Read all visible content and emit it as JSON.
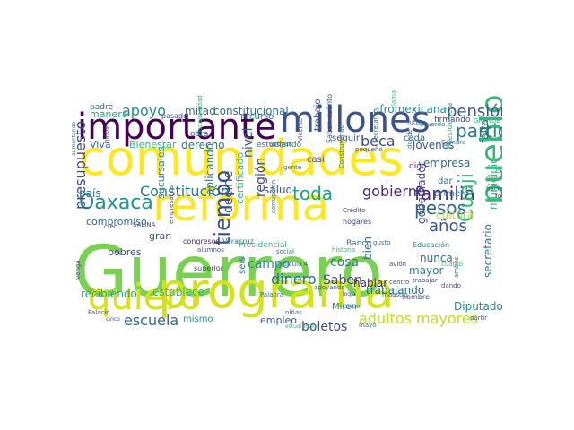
{
  "words": [
    {
      "text": "Guerrero",
      "color": "#7ad151",
      "vertical": false
    },
    {
      "text": "comunidades",
      "color": "#fde725",
      "vertical": false
    },
    {
      "text": "programa",
      "color": "#d2e21b",
      "vertical": false
    },
    {
      "text": "reforma",
      "color": "#fde725",
      "vertical": false
    },
    {
      "text": "importante",
      "color": "#440154",
      "vertical": false
    },
    {
      "text": "millones",
      "color": "#3b528b",
      "vertical": false
    },
    {
      "text": "quiero",
      "color": "#d8e219",
      "vertical": false
    },
    {
      "text": "pueblo",
      "color": "#35b779",
      "vertical": true
    },
    {
      "text": "Oaxaca",
      "color": "#21918c",
      "vertical": false
    },
    {
      "text": "Constitución",
      "color": "#2a788e",
      "vertical": false
    },
    {
      "text": "toda",
      "color": "#1fa187",
      "vertical": false
    },
    {
      "text": "familia",
      "color": "#472d7b",
      "vertical": false
    },
    {
      "text": "pesos",
      "color": "#31688e",
      "vertical": false
    },
    {
      "text": "partido",
      "color": "#2a788e",
      "vertical": false
    },
    {
      "text": "pensión",
      "color": "#3b528b",
      "vertical": false
    },
    {
      "text": "apoyo",
      "color": "#228c8d",
      "vertical": false
    },
    {
      "text": "beca",
      "color": "#3e4989",
      "vertical": false
    },
    {
      "text": "gobierno",
      "color": "#482878",
      "vertical": false
    },
    {
      "text": "años",
      "color": "#3b528b",
      "vertical": false
    },
    {
      "text": "Cuaji",
      "color": "#35b779",
      "vertical": true
    },
    {
      "text": "presupuesto",
      "color": "#3e4989",
      "vertical": true
    },
    {
      "text": "tiempo",
      "color": "#3b528b",
      "vertical": true
    },
    {
      "text": "adultos mayores",
      "color": "#bddf26",
      "vertical": false
    },
    {
      "text": "escuela",
      "color": "#31688e",
      "vertical": false
    },
    {
      "text": "boletos",
      "color": "#3e4989",
      "vertical": false
    },
    {
      "text": "dinero",
      "color": "#2c728e",
      "vertical": false
    },
    {
      "text": "Saben",
      "color": "#3e4989",
      "vertical": false
    },
    {
      "text": "hablar",
      "color": "#472d7b",
      "vertical": false
    },
    {
      "text": "cosa",
      "color": "#2a788e",
      "vertical": false
    },
    {
      "text": "salud",
      "color": "#3b528b",
      "vertical": false
    },
    {
      "text": "región",
      "color": "#3e4989",
      "vertical": true
    },
    {
      "text": "nivel",
      "color": "#355f8d",
      "vertical": true
    },
    {
      "text": "derecho",
      "color": "#2c728e",
      "vertical": false
    },
    {
      "text": "campo",
      "color": "#21918c",
      "vertical": false
    },
    {
      "text": "decirle",
      "color": "#3b528b",
      "vertical": true
    },
    {
      "text": "aplicando",
      "color": "#2a788e",
      "vertical": true
    },
    {
      "text": "recibiendo",
      "color": "#22a884",
      "vertical": false
    },
    {
      "text": "establece",
      "color": "#35b779",
      "vertical": false
    },
    {
      "text": "constitucional",
      "color": "#2c728e",
      "vertical": false
    },
    {
      "text": "afromexicana",
      "color": "#21918c",
      "vertical": false
    },
    {
      "text": "mitad",
      "color": "#2c728e",
      "vertical": false
    },
    {
      "text": "jóvenes",
      "color": "#3b528b",
      "vertical": false
    },
    {
      "text": "empresa",
      "color": "#31688e",
      "vertical": false
    },
    {
      "text": "falta",
      "color": "#2c728e",
      "vertical": true
    },
    {
      "text": "cultura",
      "color": "#b5de2b",
      "vertical": false
    },
    {
      "text": "nunca",
      "color": "#2c728e",
      "vertical": false
    },
    {
      "text": "municipio",
      "color": "#35b779",
      "vertical": true
    },
    {
      "text": "Diputados",
      "color": "#21918c",
      "vertical": false
    },
    {
      "text": "mayor",
      "color": "#26828e",
      "vertical": false
    },
    {
      "text": "bien",
      "color": "#2c728e",
      "vertical": true
    },
    {
      "text": "gobernador",
      "color": "#3e4989",
      "vertical": true
    },
    {
      "text": "secretario",
      "color": "#2c728e",
      "vertical": true
    },
    {
      "text": "trabajando",
      "color": "#2c728e",
      "vertical": false
    },
    {
      "text": "país",
      "color": "#2c728e",
      "vertical": false
    },
    {
      "text": "compromiso",
      "color": "#31688e",
      "vertical": false
    },
    {
      "text": "sucursales",
      "color": "#2a788e",
      "vertical": true
    },
    {
      "text": "gran",
      "color": "#3b528b",
      "vertical": false
    },
    {
      "text": "pobres",
      "color": "#414487",
      "vertical": false
    },
    {
      "text": "manera",
      "color": "#22a884",
      "vertical": false
    },
    {
      "text": "Viva",
      "color": "#31688e",
      "vertical": false
    },
    {
      "text": "Bienestar",
      "color": "#35b779",
      "vertical": false
    },
    {
      "text": "padre",
      "color": "#31688e",
      "vertical": false
    },
    {
      "text": "pasado",
      "color": "#3e4989",
      "vertical": false
    },
    {
      "text": "recurso",
      "color": "#2c728e",
      "vertical": false
    },
    {
      "text": "firmando",
      "color": "#3e4989",
      "vertical": false
    },
    {
      "text": "estudiando",
      "color": "#2c728e",
      "vertical": false
    },
    {
      "text": "seguir",
      "color": "#3b528b",
      "vertical": false
    },
    {
      "text": "cada",
      "color": "#31688e",
      "vertical": false
    },
    {
      "text": "primero",
      "color": "#2a788e",
      "vertical": false
    },
    {
      "text": "dar",
      "color": "#2c728e",
      "vertical": false
    },
    {
      "text": "certificado",
      "color": "#35b779",
      "vertical": true
    },
    {
      "text": "empleo",
      "color": "#3b528b",
      "vertical": false
    },
    {
      "text": "mismo",
      "color": "#21918c",
      "vertical": false
    },
    {
      "text": "seis",
      "color": "#2c728e",
      "vertical": true
    },
    {
      "text": "casi",
      "color": "#3e4989",
      "vertical": false
    },
    {
      "text": "trabajo",
      "color": "#3b528b",
      "vertical": true
    },
    {
      "text": "obra",
      "color": "#3b528b",
      "vertical": false
    },
    {
      "text": "digo",
      "color": "#482878",
      "vertical": false
    },
    {
      "text": "hombre",
      "color": "#3e4989",
      "vertical": false
    },
    {
      "text": "Miren",
      "color": "#2c728e",
      "vertical": false
    },
    {
      "text": "Banco",
      "color": "#31688e",
      "vertical": false
    },
    {
      "text": "Presidencia",
      "color": "#35b779",
      "vertical": true
    },
    {
      "text": "Educación",
      "color": "#2a788e",
      "vertical": false
    },
    {
      "text": "hogares",
      "color": "#3e4989",
      "vertical": false
    },
    {
      "text": "Crédito",
      "color": "#3e4989",
      "vertical": false
    },
    {
      "text": "Veracruz",
      "color": "#2c728e",
      "vertical": false
    },
    {
      "text": "congresos",
      "color": "#482878",
      "vertical": false
    },
    {
      "text": "superior",
      "color": "#3e4989",
      "vertical": false
    },
    {
      "text": "Palacio",
      "color": "#3e4989",
      "vertical": false
    },
    {
      "text": "venga",
      "color": "#3b528b",
      "vertical": true
    },
    {
      "text": "creo",
      "color": "#3e4989",
      "vertical": false
    },
    {
      "text": "historia",
      "color": "#35b779",
      "vertical": false
    },
    {
      "text": "Palabra",
      "color": "#2c728e",
      "vertical": false
    },
    {
      "text": "gusto",
      "color": "#2c728e",
      "vertical": false
    },
    {
      "text": "maestro",
      "color": "#31688e",
      "vertical": false
    },
    {
      "text": "partir",
      "color": "#31688e",
      "vertical": false
    },
    {
      "text": "todavía",
      "color": "#3b528b",
      "vertical": false
    },
    {
      "text": "haciendo",
      "color": "#3b528b",
      "vertical": false
    },
    {
      "text": "ganadero",
      "color": "#35b779",
      "vertical": false
    },
    {
      "text": "llama",
      "color": "#35b779",
      "vertical": true
    },
    {
      "text": "pequeño",
      "color": "#3e4989",
      "vertical": false
    },
    {
      "text": "Saben cuánto",
      "color": "#3b528b",
      "vertical": true
    },
    {
      "text": "Secretaría",
      "color": "#31688e",
      "vertical": true
    },
    {
      "text": "Vicente",
      "color": "#3e4989",
      "vertical": true
    },
    {
      "text": "apoyar",
      "color": "#31688e",
      "vertical": false
    },
    {
      "text": "gente",
      "color": "#2c728e",
      "vertical": false
    },
    {
      "text": "artículo 4",
      "color": "#2c728e",
      "vertical": false
    },
    {
      "text": "social",
      "color": "#31688e",
      "vertical": false
    },
    {
      "text": "niñas",
      "color": "#31688e",
      "vertical": false
    },
    {
      "text": "niños",
      "color": "#3b528b",
      "vertical": true
    },
    {
      "text": "SALINA",
      "color": "#3e4989",
      "vertical": false
    },
    {
      "text": "aumentando",
      "color": "#31688e",
      "vertical": true
    },
    {
      "text": "cinco",
      "color": "#3b528b",
      "vertical": false
    },
    {
      "text": "estudiantes",
      "color": "#35b779",
      "vertical": false
    },
    {
      "text": "logía",
      "color": "#3e4989",
      "vertical": false
    },
    {
      "text": "cuatro",
      "color": "#2c728e",
      "vertical": false
    },
    {
      "text": "avión",
      "color": "#3e4989",
      "vertical": false
    },
    {
      "text": "centro",
      "color": "#3e4989",
      "vertical": false
    },
    {
      "text": "Cámara",
      "color": "#31688e",
      "vertical": false
    },
    {
      "text": "futuro",
      "color": "#2c728e",
      "vertical": false
    },
    {
      "text": "acuerdo",
      "color": "#2c728e",
      "vertical": false
    },
    {
      "text": "donde",
      "color": "#2c728e",
      "vertical": true
    },
    {
      "text": "ambos",
      "color": "#31688e",
      "vertical": true
    },
    {
      "text": "alumnos",
      "color": "#3b528b",
      "vertical": false
    },
    {
      "text": "empresarios",
      "color": "#3e4989",
      "vertical": true
    },
    {
      "text": "discapacidad",
      "color": "#35b779",
      "vertical": true
    },
    {
      "text": "corrupción",
      "color": "#2a788e",
      "vertical": true
    },
    {
      "text": "Construyendo",
      "color": "#2a788e",
      "vertical": true
    },
    {
      "text": "Presidencial",
      "color": "#35b779",
      "vertical": false
    },
    {
      "text": "mayo",
      "color": "#31688e",
      "vertical": false
    },
    {
      "text": "apoyando",
      "color": "#3b528b",
      "vertical": false
    },
    {
      "text": "GRANDE",
      "color": "#35b779",
      "vertical": false
    },
    {
      "text": "dando",
      "color": "#3e4989",
      "vertical": false
    },
    {
      "text": "cuanto",
      "color": "#35b779",
      "vertical": false
    },
    {
      "text": "trabajar",
      "color": "#3b528b",
      "vertical": false
    }
  ]
}
